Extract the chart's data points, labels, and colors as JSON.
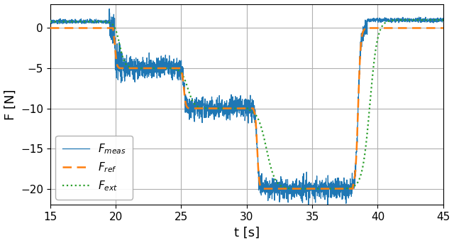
{
  "xlim": [
    15,
    45
  ],
  "ylim": [
    -22,
    3
  ],
  "xlabel": "t [s]",
  "ylabel": "F [N]",
  "xticks": [
    15,
    20,
    25,
    30,
    35,
    40,
    45
  ],
  "yticks": [
    0,
    -5,
    -10,
    -15,
    -20
  ],
  "fmeas_color": "#1f77b4",
  "fref_color": "#ff7f0e",
  "fext_color": "#2ca02c",
  "fmeas_lw": 0.9,
  "fref_lw": 1.8,
  "fext_lw": 1.6,
  "noise_std": 0.6,
  "seed": 42,
  "dt": 0.01,
  "legend_loc": "lower left",
  "legend_labels": [
    "$F_{meas}$",
    "$F_{ref}$",
    "$F_{ext}$"
  ],
  "figsize": [
    6.4,
    3.42
  ],
  "dpi": 100,
  "grid_color": "#b0b0b0",
  "grid_lw": 0.8,
  "background_color": "#ffffff"
}
